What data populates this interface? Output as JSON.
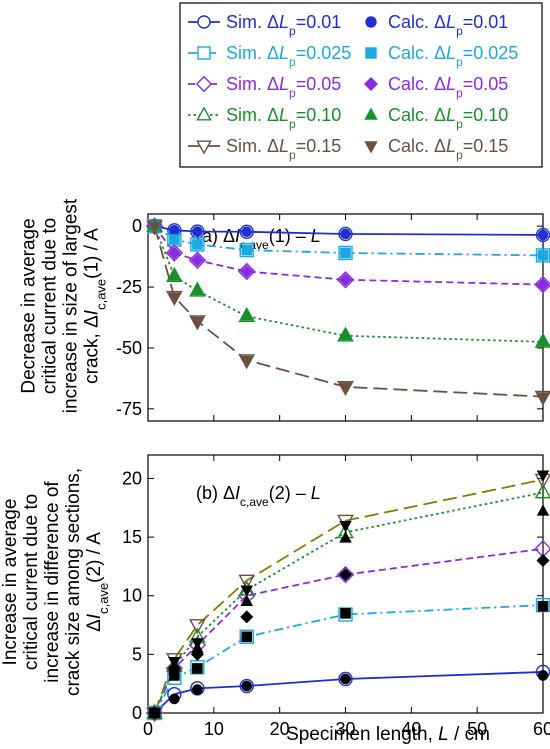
{
  "chart_data": [
    {
      "type": "line",
      "panel_title": "(b) ΔIc,ave(2) – L",
      "title_parts": {
        "prefix": "(b) Δ",
        "var": "I",
        "sub": "c,ave",
        "suffix": "(2) – L"
      },
      "xlabel": "Specimen length, L / cm",
      "ylabel_lines": [
        "Increase in average",
        "critical current due to",
        "increase in difference of",
        "crack size among sections,",
        "ΔIc,ave(2) / A"
      ],
      "xlim": [
        0,
        60
      ],
      "ylim": [
        0,
        22
      ],
      "xticks": [
        0,
        10,
        20,
        30,
        40,
        50,
        60
      ],
      "yticks": [
        0,
        5,
        10,
        15,
        20
      ],
      "x": [
        1,
        4,
        7.5,
        15,
        30,
        60
      ],
      "series": [
        {
          "name": "Sim. ΔLp=0.01",
          "values": [
            0,
            1.6,
            2.1,
            2.3,
            2.9,
            3.5
          ]
        },
        {
          "name": "Sim. ΔLp=0.025",
          "values": [
            0,
            3.0,
            3.9,
            6.5,
            8.4,
            9.2
          ]
        },
        {
          "name": "Sim. ΔLp=0.05",
          "values": [
            0,
            3.8,
            5.8,
            10.0,
            11.8,
            14.0
          ]
        },
        {
          "name": "Sim. ΔLp=0.10",
          "values": [
            0,
            4.0,
            6.5,
            10.5,
            15.4,
            18.8
          ]
        },
        {
          "name": "Sim. ΔLp=0.15",
          "values": [
            0,
            4.6,
            7.5,
            11.3,
            16.4,
            19.9
          ]
        }
      ],
      "calc_series": [
        {
          "name": "Calc. ΔLp=0.01",
          "values": [
            0,
            1.2,
            2.0,
            2.3,
            2.9,
            3.2
          ]
        },
        {
          "name": "Calc. ΔLp=0.025",
          "values": [
            0,
            3.2,
            3.8,
            6.5,
            8.5,
            9.1
          ]
        },
        {
          "name": "Calc. ΔLp=0.05",
          "values": [
            0,
            3.8,
            5.0,
            8.2,
            11.8,
            13.0
          ]
        },
        {
          "name": "Calc. ΔLp=0.10",
          "values": [
            0,
            4.0,
            5.5,
            9.5,
            14.9,
            17.2
          ]
        },
        {
          "name": "Calc. ΔLp=0.15",
          "values": [
            0,
            4.4,
            6.0,
            10.5,
            16.0,
            20.3
          ]
        }
      ]
    },
    {
      "type": "line",
      "panel_title": "(a) ΔIc,ave(1) – L",
      "title_parts": {
        "prefix": "(a) Δ",
        "var": "I",
        "sub": "c,ave",
        "suffix": "(1) – L"
      },
      "ylabel_lines": [
        "Decrease in average",
        "critical current due to",
        "increase in size of largest",
        "crack, ΔIc,ave(1) / A"
      ],
      "xlim": [
        0,
        60
      ],
      "ylim": [
        -80,
        5
      ],
      "xticks": [
        0,
        10,
        20,
        30,
        40,
        50,
        60
      ],
      "yticks": [
        0,
        -25,
        -50,
        -75
      ],
      "x": [
        1,
        4,
        7.5,
        15,
        30,
        60
      ],
      "series": [
        {
          "name": "Sim. ΔLp=0.01",
          "values": [
            0,
            -1.7,
            -2.2,
            -2.3,
            -3.2,
            -3.6
          ]
        },
        {
          "name": "Sim. ΔLp=0.025",
          "values": [
            0,
            -5.5,
            -7.5,
            -9.8,
            -11.0,
            -12.0
          ]
        },
        {
          "name": "Sim. ΔLp=0.05",
          "values": [
            0,
            -11.0,
            -14.0,
            -18.6,
            -22.0,
            -24.0
          ]
        },
        {
          "name": "Sim. ΔLp=0.10",
          "values": [
            0,
            -20.5,
            -26.5,
            -37.0,
            -45.0,
            -47.5
          ]
        },
        {
          "name": "Sim. ΔLp=0.15",
          "values": [
            0,
            -29.0,
            -39.0,
            -55.0,
            -66.0,
            -70.0
          ]
        }
      ],
      "calc_series": [
        {
          "name": "Calc. ΔLp=0.01",
          "values": [
            0,
            -1.7,
            -2.2,
            -2.3,
            -3.2,
            -3.6
          ]
        },
        {
          "name": "Calc. ΔLp=0.025",
          "values": [
            0,
            -5.5,
            -7.5,
            -9.8,
            -11.0,
            -12.0
          ]
        },
        {
          "name": "Calc. ΔLp=0.05",
          "values": [
            0,
            -11.0,
            -14.0,
            -18.6,
            -22.0,
            -24.0
          ]
        },
        {
          "name": "Calc. ΔLp=0.10",
          "values": [
            0,
            -20.5,
            -26.5,
            -37.0,
            -45.0,
            -47.5
          ]
        },
        {
          "name": "Calc. ΔLp=0.15",
          "values": [
            0,
            -29.0,
            -39.0,
            -55.0,
            -66.0,
            -70.0
          ]
        }
      ]
    }
  ],
  "legend": {
    "placement": "top",
    "entries": [
      {
        "sim": {
          "label_prefix": "Sim. Δ",
          "label_var": "L",
          "label_sub": "p",
          "label_value": "=0.01"
        },
        "calc": {
          "label_prefix": "Calc. Δ",
          "label_var": "L",
          "label_sub": "p",
          "label_value": "=0.01"
        },
        "color": "#1f2fd0",
        "marker": "circle",
        "dash": "solid"
      },
      {
        "sim": {
          "label_prefix": "Sim. Δ",
          "label_var": "L",
          "label_sub": "p",
          "label_value": "=0.025"
        },
        "calc": {
          "label_prefix": "Calc. Δ",
          "label_var": "L",
          "label_sub": "p",
          "label_value": "=0.025"
        },
        "color": "#1aa9e0",
        "marker": "square",
        "dash": "dashdot"
      },
      {
        "sim": {
          "label_prefix": "Sim. Δ",
          "label_var": "L",
          "label_sub": "p",
          "label_value": "=0.05"
        },
        "calc": {
          "label_prefix": "Calc. Δ",
          "label_var": "L",
          "label_sub": "p",
          "label_value": "=0.05"
        },
        "color": "#8a2be2",
        "marker": "diamond",
        "dash": "dashed"
      },
      {
        "sim": {
          "label_prefix": "Sim. Δ",
          "label_var": "L",
          "label_sub": "p",
          "label_value": "=0.10"
        },
        "calc": {
          "label_prefix": "Calc. Δ",
          "label_var": "L",
          "label_sub": "p",
          "label_value": "=0.10"
        },
        "color": "#18902a",
        "marker": "triangle-up",
        "dash": "dotted"
      },
      {
        "sim": {
          "label_prefix": "Sim. Δ",
          "label_var": "L",
          "label_sub": "p",
          "label_value": "=0.15"
        },
        "calc": {
          "label_prefix": "Calc. Δ",
          "label_var": "L",
          "label_sub": "p",
          "label_value": "=0.15"
        },
        "color": "#6b5040",
        "marker": "triangle-down",
        "dash": "longdash"
      }
    ]
  },
  "colors": {
    "series_b_line_015": "#8a7a00",
    "calc_marker_b": "#000000",
    "axis": "#000000"
  }
}
